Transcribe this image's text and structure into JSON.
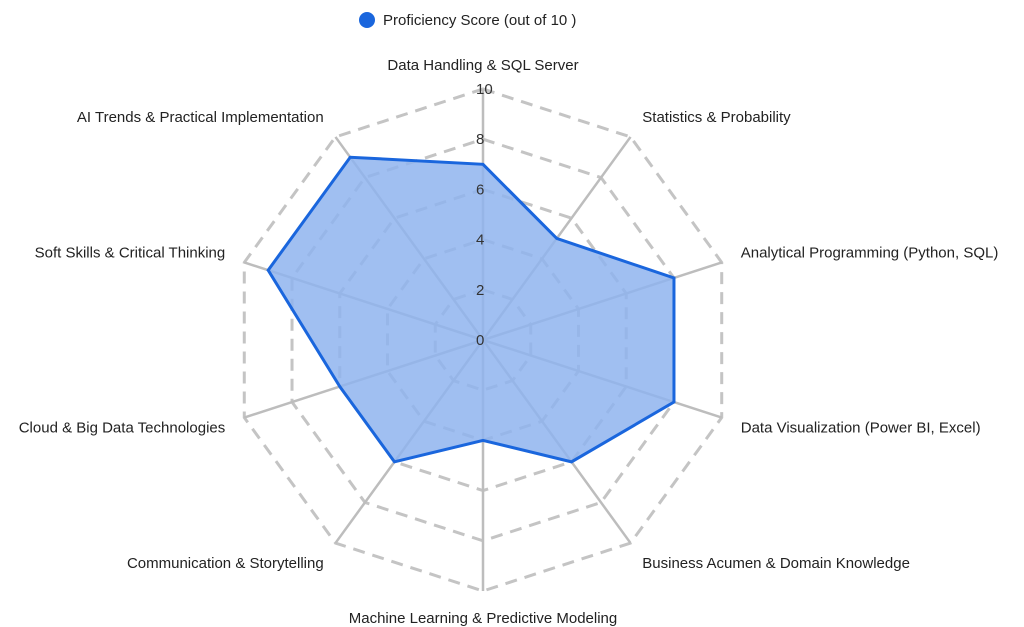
{
  "chart_data": {
    "type": "radar",
    "title": "",
    "categories": [
      "Data Handling & SQL Server",
      "Statistics & Probability",
      "Analytical Programming (Python, SQL)",
      "Data Visualization (Power BI, Excel)",
      "Business Acumen & Domain Knowledge",
      "Machine Learning & Predictive Modeling",
      "Communication & Storytelling",
      "Cloud & Big Data Technologies",
      "Soft Skills & Critical Thinking",
      "AI Trends & Practical Implementation"
    ],
    "series": [
      {
        "name": "Proficiency Score (out of 10 )",
        "color": "#1a66dd",
        "fill": "#8fb4ee",
        "values": [
          7,
          5,
          8,
          8,
          6,
          4,
          6,
          6,
          9,
          9
        ]
      }
    ],
    "rlim": [
      0,
      10
    ],
    "ticks": [
      "0",
      "2",
      "4",
      "6",
      "8",
      "10"
    ],
    "grid": true,
    "legend_position": "top"
  }
}
